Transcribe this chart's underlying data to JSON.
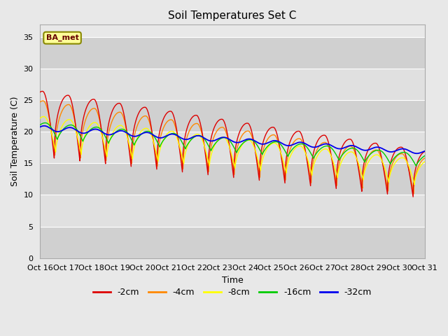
{
  "title": "Soil Temperatures Set C",
  "xlabel": "Time",
  "ylabel": "Soil Temperature (C)",
  "ylim": [
    0,
    37
  ],
  "xlim_end": 360,
  "xtick_labels": [
    "Oct 16",
    "Oct 17",
    "Oct 18",
    "Oct 19",
    "Oct 20",
    "Oct 21",
    "Oct 22",
    "Oct 23",
    "Oct 24",
    "Oct 25",
    "Oct 26",
    "Oct 27",
    "Oct 28",
    "Oct 29",
    "Oct 30",
    "Oct 31"
  ],
  "ytick_values": [
    0,
    5,
    10,
    15,
    20,
    25,
    30,
    35
  ],
  "legend_labels": [
    "-2cm",
    "-4cm",
    "-8cm",
    "-16cm",
    "-32cm"
  ],
  "line_colors": [
    "#dd0000",
    "#ff8800",
    "#ffff00",
    "#00cc00",
    "#0000ee"
  ],
  "bg_color": "#e8e8e8",
  "annotation_text": "BA_met",
  "annotation_bbox_facecolor": "#ffff99",
  "annotation_bbox_edgecolor": "#888800",
  "title_fontsize": 11,
  "label_fontsize": 9,
  "tick_fontsize": 8
}
